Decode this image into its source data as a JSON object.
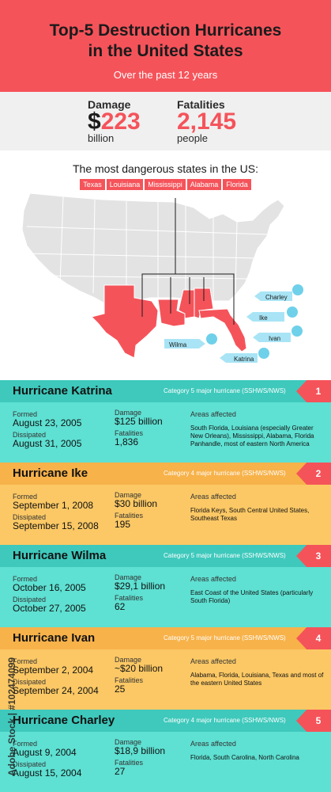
{
  "header": {
    "title_line1": "Top-5 Destruction Hurricanes",
    "title_line2": "in the United States",
    "subtitle": "Over the past 12 years"
  },
  "stats": {
    "damage_label": "Damage",
    "damage_currency": "$",
    "damage_value": "223",
    "damage_unit": "billion",
    "fatalities_label": "Fatalities",
    "fatalities_value": "2,145",
    "fatalities_unit": "people"
  },
  "states": {
    "title": "The most dangerous states in the US:",
    "tags": [
      "Texas",
      "Louisiana",
      "Mississippi",
      "Alabama",
      "Florida"
    ]
  },
  "map": {
    "labels": [
      "Charley",
      "Ike",
      "Ivan",
      "Wilma",
      "Katrina"
    ],
    "land_color": "#e3e3e3",
    "highlight_color": "#f5535a",
    "tag_color": "#a8e4f5"
  },
  "hurricanes": [
    {
      "name": "Hurricane Katrina",
      "category": "Category 5 major hurricane (SSHWS/NWS)",
      "rank": "1",
      "formed_label": "Formed",
      "formed": "August 23, 2005",
      "dissipated_label": "Dissipated",
      "dissipated": "August 31, 2005",
      "damage_label": "Damage",
      "damage": "$125 billion",
      "fatalities_label": "Fatalities",
      "fatalities": "1,836",
      "areas_label": "Areas affected",
      "areas": "South Florida, Louisiana (especially Greater New Orleans), Mississippi, Alabama, Florida Panhandle, most of eastern North America"
    },
    {
      "name": "Hurricane Ike",
      "category": "Category 4 major hurricane (SSHWS/NWS)",
      "rank": "2",
      "formed_label": "Formed",
      "formed": "September 1, 2008",
      "dissipated_label": "Dissipated",
      "dissipated": "September 15, 2008",
      "damage_label": "Damage",
      "damage": "$30 billion",
      "fatalities_label": "Fatalities",
      "fatalities": "195",
      "areas_label": "Areas affected",
      "areas": "Florida Keys, South Central United States, Southeast Texas"
    },
    {
      "name": "Hurricane Wilma",
      "category": "Category 5 major hurricane (SSHWS/NWS)",
      "rank": "3",
      "formed_label": "Formed",
      "formed": "October 16, 2005",
      "dissipated_label": "Dissipated",
      "dissipated": "October 27, 2005",
      "damage_label": "Damage",
      "damage": "$29,1 billion",
      "fatalities_label": "Fatalities",
      "fatalities": "62",
      "areas_label": "Areas affected",
      "areas": "East Coast of the United States (particularly South Florida)"
    },
    {
      "name": "Hurricane Ivan",
      "category": "Category 5 major hurricane (SSHWS/NWS)",
      "rank": "4",
      "formed_label": "Formed",
      "formed": "September 2, 2004",
      "dissipated_label": "Dissipated",
      "dissipated": "September 24, 2004",
      "damage_label": "Damage",
      "damage": "~$20 billion",
      "fatalities_label": "Fatalities",
      "fatalities": "25",
      "areas_label": "Areas affected",
      "areas": "Alabama, Florida, Louisiana, Texas and most of the eastern United States"
    },
    {
      "name": "Hurricane Charley",
      "category": "Category 4 major hurricane (SSHWS/NWS)",
      "rank": "5",
      "formed_label": "Formed",
      "formed": "August 9, 2004",
      "dissipated_label": "Dissipated",
      "dissipated": "August 15, 2004",
      "damage_label": "Damage",
      "damage": "$18,9 billion",
      "fatalities_label": "Fatalities",
      "fatalities": "27",
      "areas_label": "Areas affected",
      "areas": "Florida, South Carolina, North Carolina"
    }
  ],
  "watermark": "Adobe Stock | #102474099"
}
